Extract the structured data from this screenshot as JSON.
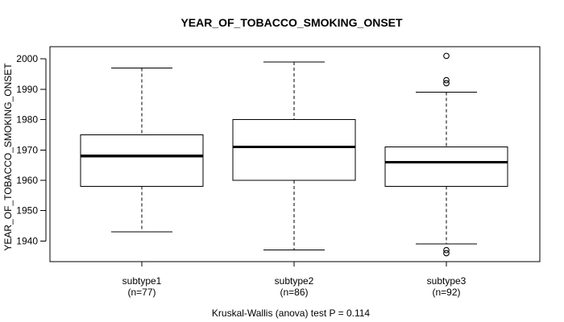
{
  "chart_data": {
    "type": "boxplot",
    "title": "YEAR_OF_TOBACCO_SMOKING_ONSET",
    "ylabel": "YEAR_OF_TOBACCO_SMOKING_ONSET",
    "xlabel": "",
    "footnote": "Kruskal-Wallis (anova) test P = 0.114",
    "y_ticks": [
      1940,
      1950,
      1960,
      1970,
      1980,
      1990,
      2000
    ],
    "ylim": [
      1933,
      2004
    ],
    "grid": false,
    "legend": "none",
    "groups": [
      {
        "label": "subtype1",
        "sublabel": "(n=77)",
        "n": 77,
        "whisker_low": 1943,
        "q1": 1958,
        "median": 1968,
        "q3": 1975,
        "whisker_high": 1997,
        "outliers": []
      },
      {
        "label": "subtype2",
        "sublabel": "(n=86)",
        "n": 86,
        "whisker_low": 1937,
        "q1": 1960,
        "median": 1971,
        "q3": 1980,
        "whisker_high": 1999,
        "outliers": []
      },
      {
        "label": "subtype3",
        "sublabel": "(n=92)",
        "n": 92,
        "whisker_low": 1939,
        "q1": 1958,
        "median": 1966,
        "q3": 1971,
        "whisker_high": 1989,
        "outliers": [
          2001,
          1993,
          1992,
          1937,
          1936
        ]
      }
    ],
    "colors": {
      "stroke": "#000000",
      "background": "#ffffff",
      "box_fill": "#ffffff"
    }
  }
}
